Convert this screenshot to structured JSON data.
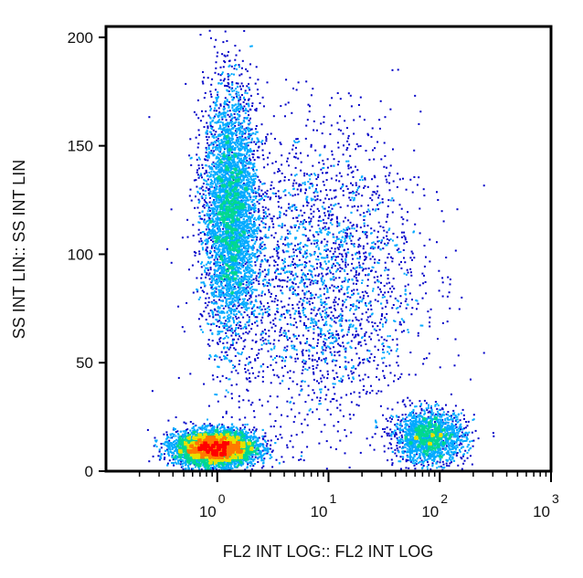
{
  "chart_data": {
    "type": "scatter",
    "subtype": "flow-cytometry density dot plot",
    "xlabel": "FL2 INT LOG:: FL2 INT LOG",
    "ylabel": "SS INT LIN:: SS INT LIN",
    "x_scale": "log",
    "xlim": [
      0.1,
      1000
    ],
    "ylim": [
      0,
      205
    ],
    "x_ticks": [
      {
        "base": "10",
        "exp": "0",
        "value": 1
      },
      {
        "base": "10",
        "exp": "1",
        "value": 10
      },
      {
        "base": "10",
        "exp": "2",
        "value": 100
      },
      {
        "base": "10",
        "exp": "3",
        "value": 1000
      }
    ],
    "y_ticks": [
      {
        "label": "0",
        "value": 0
      },
      {
        "label": "50",
        "value": 50
      },
      {
        "label": "100",
        "value": 100
      },
      {
        "label": "150",
        "value": 150
      },
      {
        "label": "200",
        "value": 200
      }
    ],
    "grid": false,
    "color_scale": [
      "#0000c8",
      "#00aaff",
      "#00d890",
      "#e8e000",
      "#ff7800",
      "#ff0000"
    ],
    "populations": [
      {
        "center_x": 1.3,
        "center_y": 120,
        "spread_log_x": 0.12,
        "spread_y": 28,
        "density": "high"
      },
      {
        "center_x": 0.95,
        "center_y": 11,
        "spread_log_x": 0.18,
        "spread_y": 4,
        "density": "very high"
      },
      {
        "center_x": 80,
        "center_y": 16,
        "spread_log_x": 0.16,
        "spread_y": 6,
        "density": "medium"
      },
      {
        "center_x": 8,
        "center_y": 90,
        "spread_log_x": 0.45,
        "spread_y": 35,
        "density": "low"
      }
    ]
  }
}
